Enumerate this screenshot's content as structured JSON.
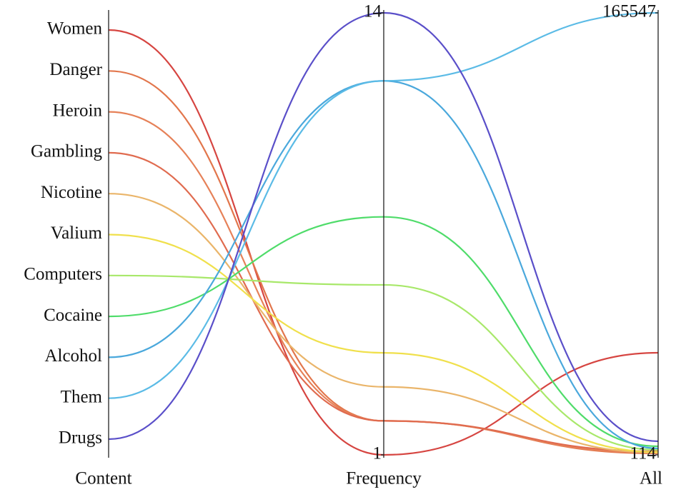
{
  "chart_data": {
    "type": "parallel",
    "category_axis": "Content",
    "categories": [
      "Women",
      "Danger",
      "Heroin",
      "Gambling",
      "Nicotine",
      "Valium",
      "Computers",
      "Cocaine",
      "Alcohol",
      "Them",
      "Drugs"
    ],
    "colors": [
      "#d64541",
      "#e2764c",
      "#e68158",
      "#e06b4f",
      "#eab56a",
      "#f0e04c",
      "#a8e86a",
      "#4fdc6a",
      "#4aa8dc",
      "#5bbbe6",
      "#5a4fc9"
    ],
    "series": [
      {
        "name": "Frequency",
        "lim": [
          1,
          14
        ],
        "ticks": [
          1,
          14
        ],
        "values": [
          1,
          2,
          2,
          2,
          3,
          4,
          6,
          8,
          12,
          12,
          14
        ]
      },
      {
        "name": "All",
        "lim": [
          114,
          165547
        ],
        "ticks": [
          114,
          165547
        ],
        "values": [
          38330,
          650,
          914,
          1450,
          914,
          1180,
          1990,
          3320,
          2520,
          165547,
          5190
        ]
      }
    ]
  }
}
